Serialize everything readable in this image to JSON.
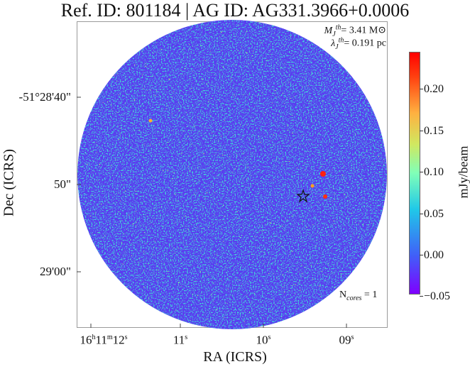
{
  "title": "Ref. ID: 801184 | AG ID: AG331.3966+0.0006",
  "annotations": {
    "mass_label": "M",
    "mass_sub": "J",
    "mass_sup": "th",
    "mass_value": "= 3.41 M⊙",
    "length_label": "λ",
    "length_sub": "J",
    "length_sup": "th",
    "length_value": "= 0.191 pc",
    "ncores_label": "N",
    "ncores_sub": "cores",
    "ncores_value": " = 1"
  },
  "axes": {
    "xlabel": "RA (ICRS)",
    "ylabel": "Dec (ICRS)",
    "xticks": [
      "16h11m12s",
      "11s",
      "10s",
      "09s"
    ],
    "yticks": [
      "-51°28'40\"",
      "50\"",
      "29'00\""
    ]
  },
  "colorbar": {
    "label": "mJy/beam",
    "ticks": [
      "0.20",
      "0.15",
      "0.10",
      "0.05",
      "0.00",
      "−0.05"
    ]
  },
  "markers": {
    "star": "star-icon"
  }
}
